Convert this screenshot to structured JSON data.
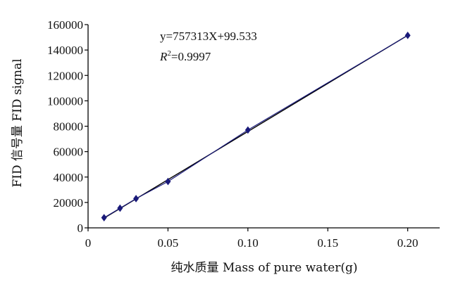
{
  "chart_data": {
    "type": "scatter",
    "title": "",
    "xlabel": "纯水质量  Mass of pure water(g)",
    "ylabel": "FID 信号量  FID signal",
    "xlim": [
      0,
      0.22
    ],
    "ylim": [
      0,
      160000
    ],
    "x_ticks": [
      0,
      0.05,
      0.1,
      0.15,
      0.2
    ],
    "x_tick_labels": [
      "0",
      "0.05",
      "0.10",
      "0.15",
      "0.20"
    ],
    "y_ticks": [
      0,
      20000,
      40000,
      60000,
      80000,
      100000,
      120000,
      140000,
      160000
    ],
    "y_tick_labels": [
      "0",
      "20000",
      "40000",
      "60000",
      "80000",
      "100000",
      "120000",
      "140000",
      "160000"
    ],
    "grid": false,
    "series": [
      {
        "x": [
          0.01,
          0.02,
          0.03,
          0.05,
          0.1,
          0.2
        ],
        "y": [
          8000,
          15500,
          23000,
          36500,
          77000,
          151500
        ],
        "color": "#1a1a7a",
        "marker": "diamond"
      }
    ],
    "fit_line": {
      "slope": 757313,
      "intercept": 99.533,
      "color": "#000000"
    },
    "annotations": {
      "equation": "y=757313X+99.533",
      "r2_symbol": "R",
      "r2_sup": "2",
      "r2_value": "=0.9997"
    }
  }
}
